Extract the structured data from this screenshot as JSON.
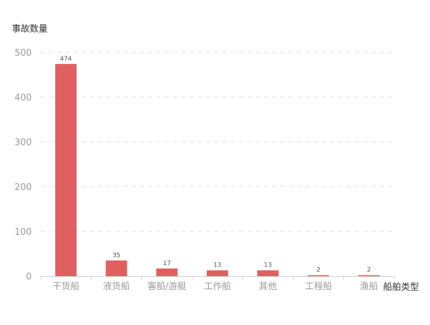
{
  "chart_data": {
    "type": "bar",
    "categories": [
      "干货船",
      "液货船",
      "客船/游艇",
      "工作船",
      "其他",
      "工程船",
      "渔船"
    ],
    "series": [
      {
        "values": [
          474,
          35,
          17,
          13,
          13,
          2,
          2
        ]
      }
    ],
    "xlabel": "船舶类型",
    "ylabel": "事故数量",
    "ylim": [
      0,
      500
    ],
    "yticks": [
      0,
      100,
      200,
      300,
      400,
      500
    ],
    "grid": true,
    "data_labels": true,
    "colors": {
      "bar": "#e06060",
      "grid": "#dddddd",
      "axis": "#cccccc",
      "tick_text": "#999999",
      "label_text": "#555555"
    }
  }
}
